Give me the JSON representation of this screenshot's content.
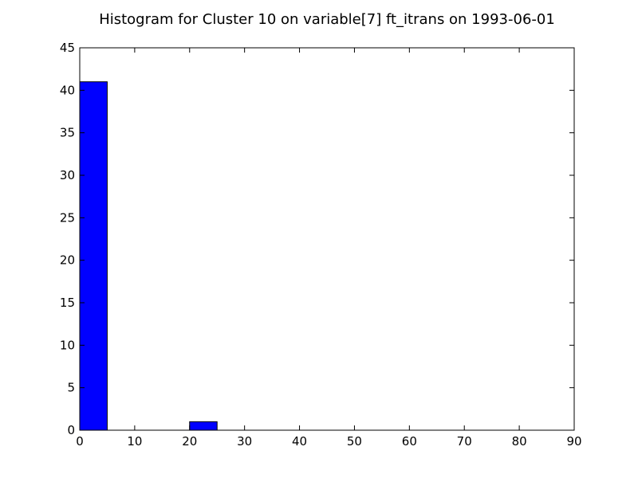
{
  "chart_data": {
    "type": "bar",
    "title": "Histogram for Cluster 10 on variable[7] ft_itrans on 1993-06-01",
    "xlabel": "",
    "ylabel": "",
    "xlim": [
      0,
      90
    ],
    "ylim": [
      0,
      45
    ],
    "x_ticks": [
      0,
      10,
      20,
      30,
      40,
      50,
      60,
      70,
      80,
      90
    ],
    "y_ticks": [
      0,
      5,
      10,
      15,
      20,
      25,
      30,
      35,
      40,
      45
    ],
    "bins": [
      {
        "x0": 0,
        "x1": 5,
        "count": 41
      },
      {
        "x0": 20,
        "x1": 25,
        "count": 1
      }
    ],
    "bar_color": "#0000ff",
    "edge_color": "#000000",
    "grid": false
  }
}
